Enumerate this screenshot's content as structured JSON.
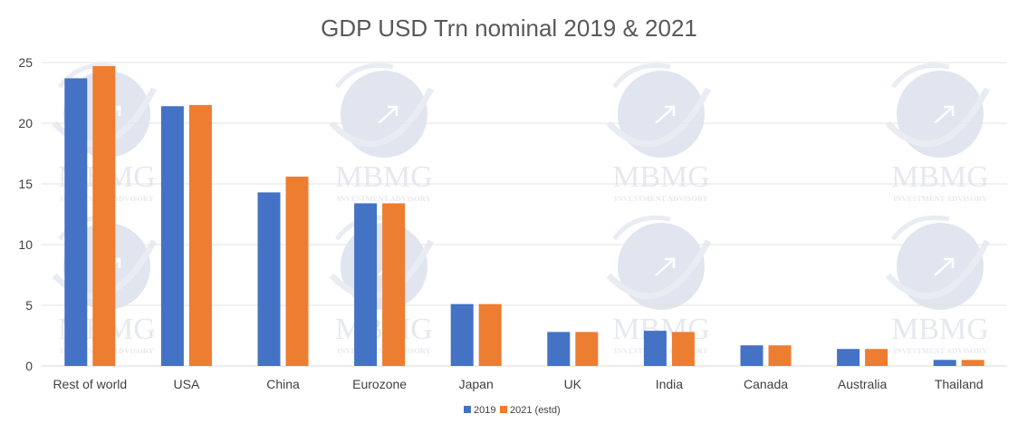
{
  "chart_data": {
    "type": "bar",
    "title": "GDP USD Trn nominal 2019 & 2021",
    "xlabel": "",
    "ylabel": "",
    "ylim": [
      0,
      25
    ],
    "yticks": [
      0,
      5,
      10,
      15,
      20,
      25
    ],
    "grid": true,
    "legend_position": "bottom",
    "categories": [
      "Rest of world",
      "USA",
      "China",
      "Eurozone",
      "Japan",
      "UK",
      "India",
      "Canada",
      "Australia",
      "Thailand"
    ],
    "series": [
      {
        "name": "2019",
        "color": "#4472C4",
        "values": [
          23.7,
          21.4,
          14.3,
          13.4,
          5.1,
          2.8,
          2.9,
          1.7,
          1.4,
          0.5
        ]
      },
      {
        "name": "2021 (estd)",
        "color": "#ED7D31",
        "values": [
          24.7,
          21.5,
          15.6,
          13.4,
          5.1,
          2.8,
          2.8,
          1.7,
          1.4,
          0.5
        ]
      }
    ]
  },
  "watermark": {
    "brand": "MBMG",
    "tagline": "INVESTMENT ADVISORY"
  }
}
